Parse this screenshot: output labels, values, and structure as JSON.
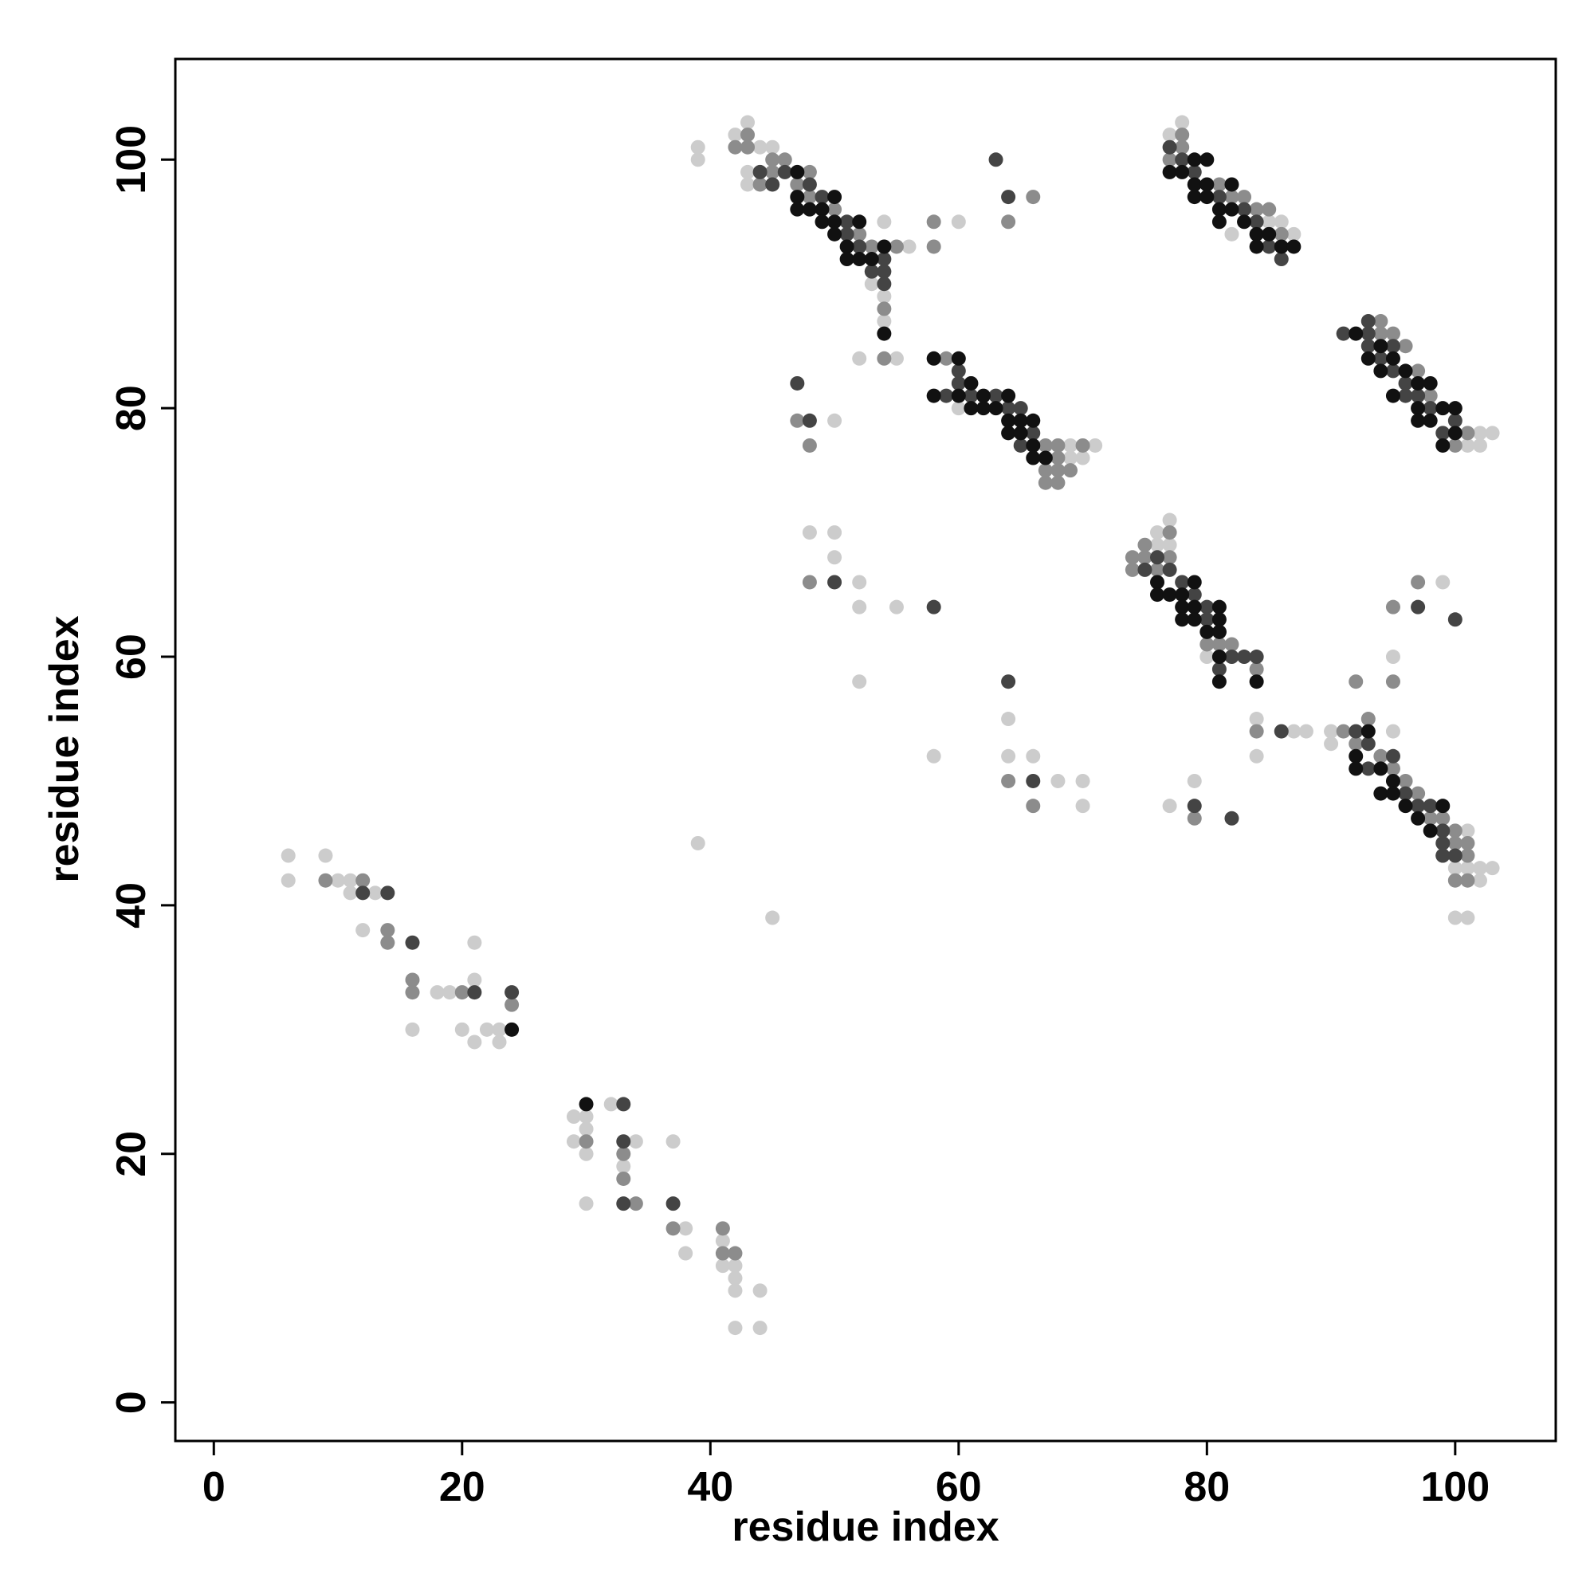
{
  "chart_data": {
    "type": "scatter",
    "xlabel": "residue index",
    "ylabel": "residue index",
    "xlim": [
      -3.1,
      108.1
    ],
    "ylim": [
      -3.1,
      108.1
    ],
    "xticks": [
      0,
      20,
      40,
      60,
      80,
      100
    ],
    "yticks": [
      0,
      20,
      40,
      60,
      80,
      100
    ],
    "series": [
      {
        "color": "#cccccc",
        "x": [
          6,
          6,
          9,
          10,
          11,
          11,
          12,
          16,
          13,
          18,
          19,
          20,
          21,
          21,
          21,
          22,
          23,
          23,
          29,
          29,
          30,
          30,
          30,
          30,
          32,
          33,
          34,
          37,
          38,
          41,
          41,
          42,
          42,
          42,
          44,
          42,
          44,
          38,
          39,
          45,
          39,
          39,
          42,
          43,
          43,
          43,
          44,
          45,
          54,
          53,
          54,
          54,
          56,
          60,
          52,
          55,
          50,
          60,
          69,
          69,
          70,
          71,
          48,
          50,
          50,
          52,
          52,
          55,
          52,
          58,
          64,
          64,
          66,
          68,
          70,
          70,
          76,
          76,
          77,
          77,
          80,
          84,
          84,
          87,
          88,
          77,
          79,
          90,
          90,
          95,
          95,
          100,
          101,
          101,
          102,
          103,
          102,
          100,
          101,
          99,
          101,
          102,
          102,
          103,
          77,
          78,
          82,
          85,
          86,
          87
        ],
        "y": [
          44,
          42,
          44,
          42,
          42,
          41,
          38,
          30,
          41,
          33,
          33,
          30,
          37,
          34,
          29,
          30,
          30,
          29,
          23,
          21,
          23,
          22,
          20,
          16,
          24,
          19,
          21,
          21,
          12,
          13,
          11,
          11,
          10,
          9,
          9,
          6,
          6,
          14,
          45,
          39,
          101,
          100,
          102,
          103,
          99,
          98,
          101,
          101,
          95,
          90,
          89,
          87,
          93,
          95,
          84,
          84,
          79,
          80,
          77,
          76,
          76,
          77,
          70,
          70,
          68,
          66,
          64,
          64,
          58,
          52,
          55,
          52,
          52,
          50,
          50,
          48,
          70,
          69,
          71,
          69,
          60,
          55,
          52,
          54,
          54,
          48,
          50,
          54,
          53,
          54,
          60,
          43,
          46,
          43,
          43,
          43,
          42,
          39,
          39,
          66,
          77,
          78,
          77,
          78,
          102,
          103,
          94,
          95,
          95,
          94
        ]
      },
      {
        "color": "#8c8c8c",
        "x": [
          12,
          9,
          14,
          14,
          16,
          16,
          20,
          24,
          30,
          33,
          33,
          37,
          34,
          41,
          41,
          42,
          42,
          43,
          43,
          45,
          46,
          45,
          44,
          48,
          47,
          48,
          50,
          52,
          53,
          53,
          54,
          54,
          55,
          58,
          58,
          66,
          64,
          47,
          48,
          59,
          61,
          67,
          67,
          67,
          68,
          68,
          68,
          68,
          69,
          70,
          48,
          64,
          66,
          74,
          74,
          75,
          75,
          76,
          77,
          77,
          80,
          81,
          82,
          84,
          84,
          79,
          91,
          93,
          92,
          94,
          95,
          96,
          97,
          98,
          99,
          100,
          100,
          101,
          101,
          100,
          101,
          95,
          97,
          99,
          92,
          95,
          94,
          94,
          95,
          96,
          97,
          98,
          101,
          100,
          77,
          78,
          78,
          81,
          82,
          83,
          84,
          85,
          85,
          86,
          86
        ],
        "y": [
          42,
          42,
          38,
          37,
          34,
          33,
          33,
          32,
          21,
          20,
          18,
          14,
          16,
          14,
          12,
          12,
          101,
          102,
          101,
          100,
          100,
          99,
          98,
          99,
          98,
          97,
          96,
          94,
          93,
          92,
          88,
          84,
          93,
          95,
          93,
          97,
          95,
          79,
          77,
          84,
          82,
          77,
          75,
          74,
          77,
          76,
          75,
          74,
          75,
          77,
          66,
          50,
          48,
          68,
          67,
          69,
          68,
          67,
          70,
          68,
          61,
          61,
          61,
          59,
          54,
          47,
          54,
          55,
          53,
          52,
          51,
          50,
          49,
          47,
          47,
          46,
          45,
          45,
          44,
          42,
          42,
          58,
          66,
          44,
          58,
          64,
          87,
          86,
          86,
          85,
          83,
          81,
          78,
          77,
          100,
          102,
          101,
          98,
          97,
          97,
          96,
          96,
          94,
          93,
          94
        ]
      },
      {
        "color": "#444444",
        "x": [
          12,
          14,
          16,
          21,
          24,
          33,
          33,
          33,
          37,
          44,
          45,
          46,
          48,
          49,
          51,
          51,
          52,
          53,
          54,
          54,
          54,
          63,
          64,
          47,
          48,
          59,
          60,
          60,
          61,
          63,
          64,
          65,
          65,
          66,
          50,
          58,
          64,
          66,
          76,
          75,
          77,
          78,
          79,
          80,
          80,
          81,
          82,
          83,
          84,
          81,
          86,
          79,
          82,
          92,
          93,
          93,
          95,
          96,
          97,
          98,
          99,
          99,
          99,
          100,
          97,
          100,
          91,
          93,
          93,
          93,
          94,
          95,
          95,
          96,
          96,
          97,
          98,
          99,
          100,
          77,
          78,
          79,
          81,
          83,
          84,
          85,
          86
        ],
        "y": [
          41,
          41,
          37,
          33,
          33,
          24,
          21,
          16,
          16,
          99,
          98,
          99,
          98,
          97,
          95,
          94,
          93,
          91,
          92,
          91,
          90,
          100,
          97,
          82,
          79,
          81,
          83,
          82,
          81,
          81,
          80,
          80,
          77,
          78,
          66,
          64,
          58,
          50,
          68,
          67,
          67,
          66,
          65,
          64,
          63,
          62,
          60,
          60,
          60,
          59,
          54,
          48,
          47,
          54,
          53,
          51,
          52,
          49,
          48,
          48,
          46,
          45,
          44,
          44,
          64,
          63,
          86,
          87,
          86,
          85,
          84,
          85,
          83,
          82,
          81,
          81,
          80,
          78,
          79,
          101,
          100,
          99,
          97,
          96,
          95,
          93,
          92
        ]
      },
      {
        "color": "#111111",
        "x": [
          24,
          30,
          47,
          47,
          47,
          48,
          49,
          49,
          50,
          50,
          50,
          51,
          51,
          52,
          52,
          53,
          54,
          54,
          58,
          58,
          60,
          60,
          61,
          62,
          62,
          63,
          64,
          64,
          64,
          65,
          65,
          66,
          66,
          66,
          67,
          61,
          76,
          76,
          77,
          78,
          78,
          78,
          79,
          79,
          79,
          80,
          81,
          81,
          81,
          81,
          81,
          84,
          93,
          92,
          92,
          94,
          94,
          95,
          95,
          96,
          97,
          98,
          99,
          92,
          93,
          94,
          94,
          95,
          95,
          96,
          97,
          97,
          97,
          98,
          98,
          99,
          99,
          100,
          100,
          77,
          78,
          79,
          79,
          79,
          80,
          80,
          80,
          81,
          81,
          82,
          82,
          83,
          84,
          84,
          85,
          86,
          87
        ],
        "y": [
          30,
          24,
          99,
          97,
          96,
          96,
          96,
          95,
          97,
          95,
          94,
          93,
          92,
          95,
          92,
          92,
          93,
          86,
          84,
          81,
          84,
          81,
          80,
          80,
          81,
          80,
          81,
          79,
          78,
          79,
          78,
          77,
          76,
          79,
          76,
          82,
          66,
          65,
          65,
          65,
          64,
          63,
          66,
          64,
          63,
          62,
          64,
          63,
          62,
          60,
          58,
          58,
          54,
          52,
          51,
          51,
          49,
          50,
          49,
          48,
          47,
          46,
          48,
          86,
          84,
          85,
          83,
          84,
          81,
          83,
          82,
          80,
          79,
          82,
          79,
          80,
          77,
          80,
          78,
          99,
          99,
          100,
          98,
          97,
          100,
          98,
          97,
          96,
          95,
          98,
          96,
          95,
          94,
          93,
          94,
          93,
          93
        ]
      }
    ]
  }
}
